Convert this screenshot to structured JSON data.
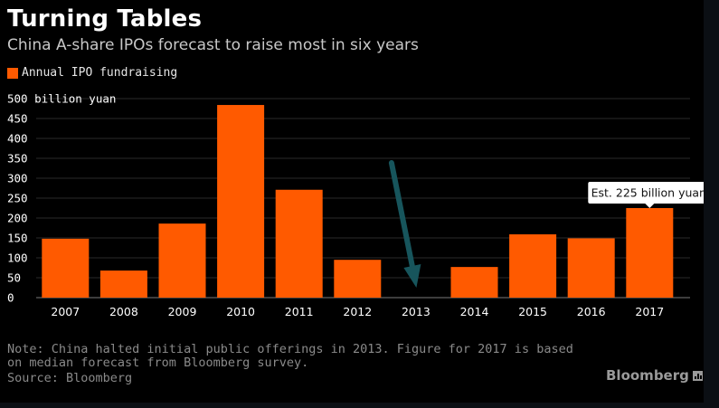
{
  "header": {
    "title": "Turning Tables",
    "subtitle": "China A-share IPOs forecast to raise most in six years"
  },
  "legend": {
    "label": "Annual IPO fundraising",
    "color": "#ff5a00"
  },
  "footer": {
    "note": "Note: China halted initial public offerings in 2013. Figure for 2017 is based on median forecast from Bloomberg survey.",
    "source": "Source: Bloomberg",
    "brand": "Bloomberg"
  },
  "colors": {
    "background": "#000000",
    "bar": "#ff5a00",
    "grid": "#2a2a2a",
    "text": "#ffffff",
    "arrow": "#17555c"
  },
  "chart_data": {
    "type": "bar",
    "title": "Turning Tables",
    "subtitle": "China A-share IPOs forecast to raise most in six years",
    "ylabel": "billion yuan",
    "xlabel": "",
    "categories": [
      "2007",
      "2008",
      "2009",
      "2010",
      "2011",
      "2012",
      "2013",
      "2014",
      "2015",
      "2016",
      "2017"
    ],
    "series": [
      {
        "name": "Annual IPO fundraising",
        "values": [
          148,
          68,
          186,
          484,
          271,
          95,
          0,
          77,
          159,
          149,
          225
        ]
      }
    ],
    "ylim": [
      0,
      500
    ],
    "yticks": [
      0,
      50,
      100,
      150,
      200,
      250,
      300,
      350,
      400,
      450,
      500
    ],
    "ytick_labels": [
      "0",
      "50",
      "100",
      "150",
      "200",
      "250",
      "300",
      "350",
      "400",
      "450",
      "500 billion yuan"
    ],
    "grid": true,
    "legend_position": "top-left",
    "annotations": [
      {
        "category": "2017",
        "text": "Est. 225 billion yuan"
      },
      {
        "category": "2013",
        "type": "arrow",
        "text": ""
      }
    ]
  }
}
